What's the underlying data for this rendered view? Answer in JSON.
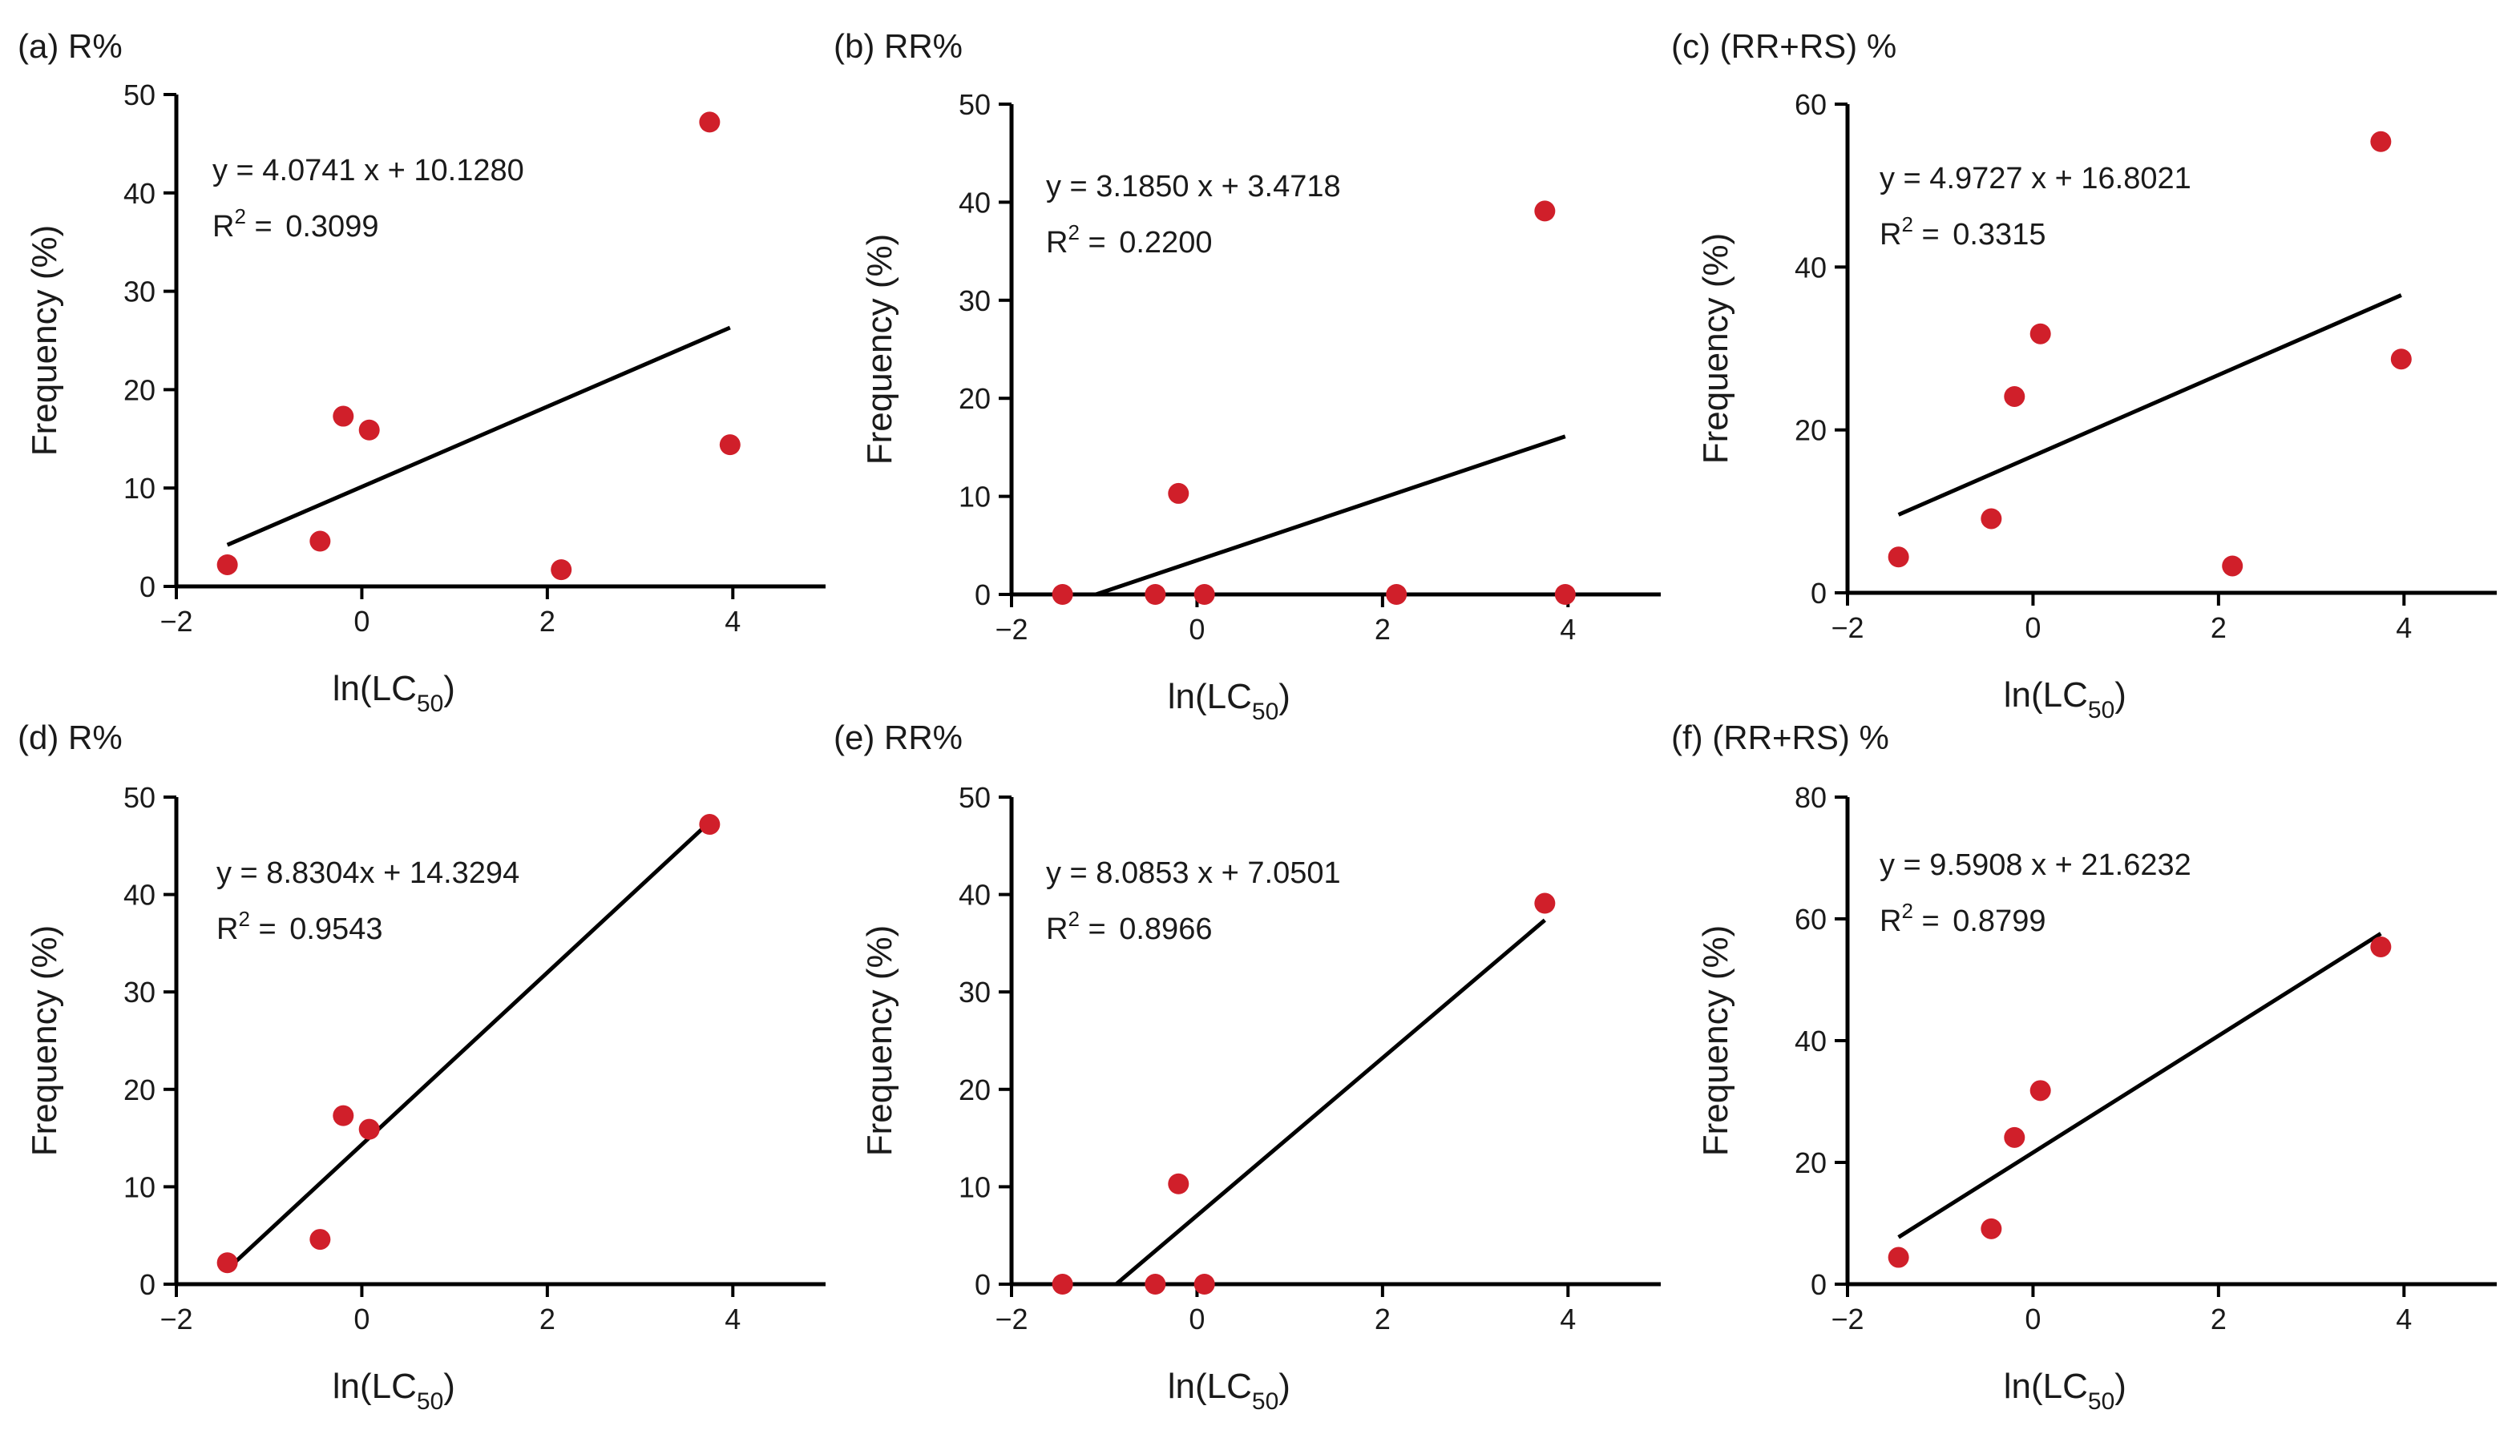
{
  "figure": {
    "xlabel": "ln(LC",
    "xlabel_sub": "50",
    "xlabel_close": ")",
    "ylabel": "Frequency (%)",
    "r2_prefix": "R",
    "r2_exp": "2",
    "r2_eq": " = "
  },
  "colors": {
    "point": "#d01f2a",
    "line": "#000000",
    "axis": "#000000"
  },
  "chart_data": [
    {
      "panel": "a",
      "title": "(a) R%",
      "type": "scatter",
      "x": [
        -1.45,
        -0.45,
        -0.2,
        0.08,
        2.15,
        3.75,
        3.97
      ],
      "y": [
        2.2,
        4.6,
        17.3,
        15.9,
        1.7,
        47.2,
        14.4
      ],
      "xlim": [
        -2,
        5
      ],
      "xticks": [
        -2,
        0,
        2,
        4
      ],
      "xtick_labels": [
        "−2",
        "0",
        "2",
        "4"
      ],
      "ylim": [
        0,
        50
      ],
      "yticks": [
        0,
        10,
        20,
        30,
        40,
        50
      ],
      "ytick_labels": [
        "0",
        "10",
        "20",
        "30",
        "40",
        "50"
      ],
      "fit": {
        "slope": 4.0741,
        "intercept": 10.128,
        "x_range": [
          -1.45,
          3.97
        ]
      },
      "equation": "y = 4.0741 x + 10.1280",
      "r2_value": "0.3099"
    },
    {
      "panel": "b",
      "title": "(b) RR%",
      "type": "scatter",
      "x": [
        -1.45,
        -0.45,
        -0.2,
        0.08,
        2.15,
        3.75,
        3.97
      ],
      "y": [
        0,
        0,
        10.3,
        0,
        0,
        39.1,
        0
      ],
      "xlim": [
        -2,
        5
      ],
      "xticks": [
        -2,
        0,
        2,
        4
      ],
      "xtick_labels": [
        "−2",
        "0",
        "2",
        "4"
      ],
      "ylim": [
        0,
        50
      ],
      "yticks": [
        0,
        10,
        20,
        30,
        40,
        50
      ],
      "ytick_labels": [
        "0",
        "10",
        "20",
        "30",
        "40",
        "50"
      ],
      "fit": {
        "slope": 3.185,
        "intercept": 3.4718,
        "x_range": [
          -1.09,
          3.97
        ]
      },
      "equation": "y = 3.1850 x + 3.4718",
      "r2_value": "0.2200"
    },
    {
      "panel": "c",
      "title": "(c) (RR+RS) %",
      "type": "scatter",
      "x": [
        -1.45,
        -0.45,
        -0.2,
        0.08,
        2.15,
        3.75,
        3.97
      ],
      "y": [
        4.4,
        9.1,
        24.1,
        31.8,
        3.3,
        55.4,
        28.7
      ],
      "xlim": [
        -2,
        5
      ],
      "xticks": [
        -2,
        0,
        2,
        4
      ],
      "xtick_labels": [
        "−2",
        "0",
        "2",
        "4"
      ],
      "ylim": [
        0,
        60
      ],
      "yticks": [
        0,
        20,
        40,
        60
      ],
      "ytick_labels": [
        "0",
        "20",
        "40",
        "60"
      ],
      "fit": {
        "slope": 4.9727,
        "intercept": 16.8021,
        "x_range": [
          -1.45,
          3.97
        ]
      },
      "equation": "y = 4.9727 x + 16.8021",
      "r2_value": "0.3315"
    },
    {
      "panel": "d",
      "title": "(d) R%",
      "type": "scatter",
      "x": [
        -1.45,
        -0.45,
        -0.2,
        0.08,
        3.75
      ],
      "y": [
        2.2,
        4.6,
        17.3,
        15.9,
        47.2
      ],
      "xlim": [
        -2,
        5
      ],
      "xticks": [
        -2,
        0,
        2,
        4
      ],
      "xtick_labels": [
        "−2",
        "0",
        "2",
        "4"
      ],
      "ylim": [
        0,
        50
      ],
      "yticks": [
        0,
        10,
        20,
        30,
        40,
        50
      ],
      "ytick_labels": [
        "0",
        "10",
        "20",
        "30",
        "40",
        "50"
      ],
      "fit": {
        "slope": 8.8304,
        "intercept": 14.3294,
        "x_range": [
          -1.45,
          3.75
        ]
      },
      "equation": "y = 8.8304x + 14.3294",
      "r2_value": "0.9543"
    },
    {
      "panel": "e",
      "title": "(e) RR%",
      "type": "scatter",
      "x": [
        -1.45,
        -0.45,
        -0.2,
        0.08,
        3.75
      ],
      "y": [
        0,
        0,
        10.3,
        0,
        39.1
      ],
      "xlim": [
        -2,
        5
      ],
      "xticks": [
        -2,
        0,
        2,
        4
      ],
      "xtick_labels": [
        "−2",
        "0",
        "2",
        "4"
      ],
      "ylim": [
        0,
        50
      ],
      "yticks": [
        0,
        10,
        20,
        30,
        40,
        50
      ],
      "ytick_labels": [
        "0",
        "10",
        "20",
        "30",
        "40",
        "50"
      ],
      "fit": {
        "slope": 8.0853,
        "intercept": 7.0501,
        "x_range": [
          -0.87,
          3.75
        ]
      },
      "equation": "y = 8.0853 x + 7.0501",
      "r2_value": "0.8966"
    },
    {
      "panel": "f",
      "title": "(f) (RR+RS) %",
      "type": "scatter",
      "x": [
        -1.45,
        -0.45,
        -0.2,
        0.08,
        3.75
      ],
      "y": [
        4.4,
        9.1,
        24.1,
        31.8,
        55.4
      ],
      "xlim": [
        -2,
        5
      ],
      "xticks": [
        -2,
        0,
        2,
        4
      ],
      "xtick_labels": [
        "−2",
        "0",
        "2",
        "4"
      ],
      "ylim": [
        0,
        80
      ],
      "yticks": [
        0,
        20,
        40,
        60,
        80
      ],
      "ytick_labels": [
        "0",
        "20",
        "40",
        "60",
        "80"
      ],
      "fit": {
        "slope": 9.5908,
        "intercept": 21.6232,
        "x_range": [
          -1.45,
          3.75
        ]
      },
      "equation": "y = 9.5908 x + 21.6232",
      "r2_value": "0.8799"
    }
  ]
}
